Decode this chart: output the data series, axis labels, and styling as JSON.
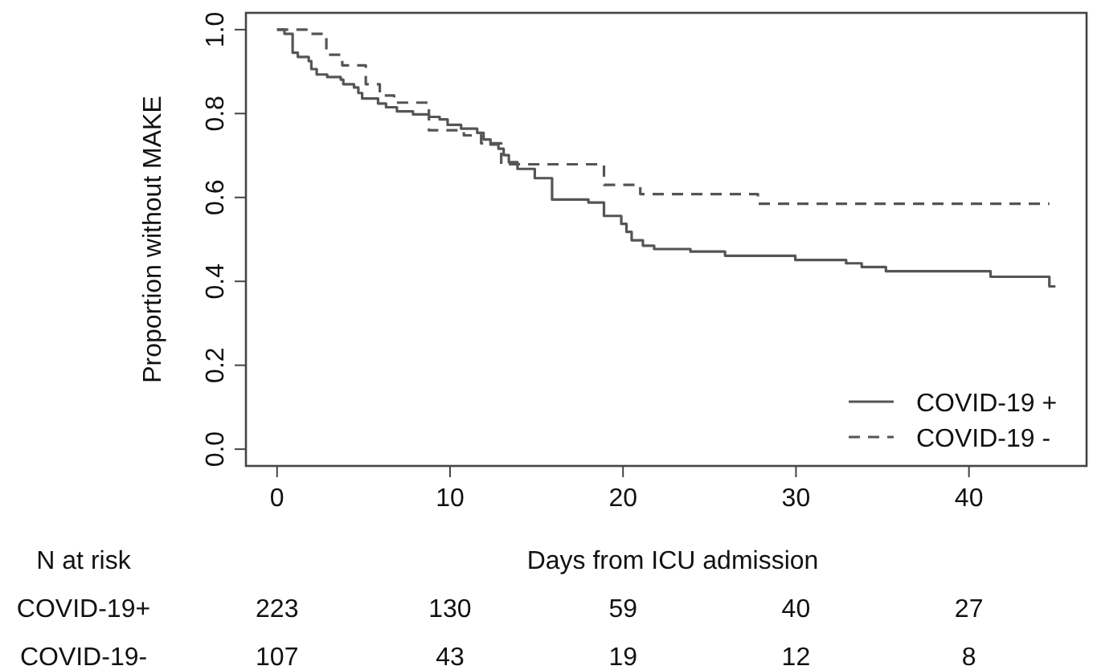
{
  "chart_data": {
    "type": "step",
    "xlabel": "Days from ICU admission",
    "ylabel": "Proportion without MAKE",
    "xlim": [
      -1.8,
      46.8
    ],
    "ylim": [
      -0.04,
      1.04
    ],
    "xticks": [
      0,
      10,
      20,
      30,
      40
    ],
    "yticks": [
      {
        "value": 0,
        "label": "0.0"
      },
      {
        "value": 0.2,
        "label": "0.2"
      },
      {
        "value": 0.4,
        "label": "0.4"
      },
      {
        "value": 0.6,
        "label": "0.6"
      },
      {
        "value": 0.8,
        "label": "0.8"
      },
      {
        "value": 1,
        "label": "1.0"
      }
    ],
    "legend": "bottom right",
    "grid": false,
    "series": [
      {
        "name": "COVID-19 +",
        "color": "#555555",
        "line_style": "solid",
        "x": [
          0,
          0.43,
          0.9,
          1.2,
          1.83,
          1.98,
          2.29,
          2.9,
          3.68,
          3.83,
          4.45,
          4.7,
          4.92,
          5.84,
          6.3,
          6.93,
          7.86,
          8.78,
          9.4,
          9.86,
          10.64,
          11.57,
          11.94,
          12.34,
          12.8,
          13.1,
          13.4,
          13.9,
          14.9,
          15.9,
          18.0,
          18.9,
          19.9,
          20.2,
          20.5,
          21.15,
          21.8,
          23.9,
          25.9,
          29.96,
          32.9,
          33.8,
          35.2,
          41.25,
          44.65,
          45.0
        ],
        "values": [
          1.0,
          0.99,
          0.945,
          0.935,
          0.925,
          0.906,
          0.893,
          0.887,
          0.881,
          0.87,
          0.862,
          0.849,
          0.836,
          0.824,
          0.815,
          0.805,
          0.798,
          0.792,
          0.786,
          0.773,
          0.764,
          0.754,
          0.738,
          0.726,
          0.716,
          0.701,
          0.684,
          0.668,
          0.646,
          0.595,
          0.588,
          0.556,
          0.537,
          0.518,
          0.498,
          0.485,
          0.477,
          0.471,
          0.461,
          0.451,
          0.443,
          0.434,
          0.424,
          0.411,
          0.388,
          0.388
        ]
      },
      {
        "name": "COVID-19 -",
        "color": "#555555",
        "line_style": "dashed",
        "x": [
          0,
          1.98,
          2.85,
          3.77,
          5.13,
          5.94,
          6.77,
          8.78,
          10.8,
          11.8,
          12.96,
          18.9,
          21.0,
          27.8,
          44.65
        ],
        "values": [
          1.0,
          0.99,
          0.94,
          0.915,
          0.87,
          0.843,
          0.826,
          0.76,
          0.748,
          0.729,
          0.679,
          0.63,
          0.608,
          0.585,
          0.585
        ]
      }
    ],
    "annotations": [
      "N at risk",
      "COVID-19+",
      "223",
      "130",
      "59",
      "40",
      "27",
      "COVID-19-",
      "107",
      "43",
      "19",
      "12",
      "8"
    ]
  }
}
